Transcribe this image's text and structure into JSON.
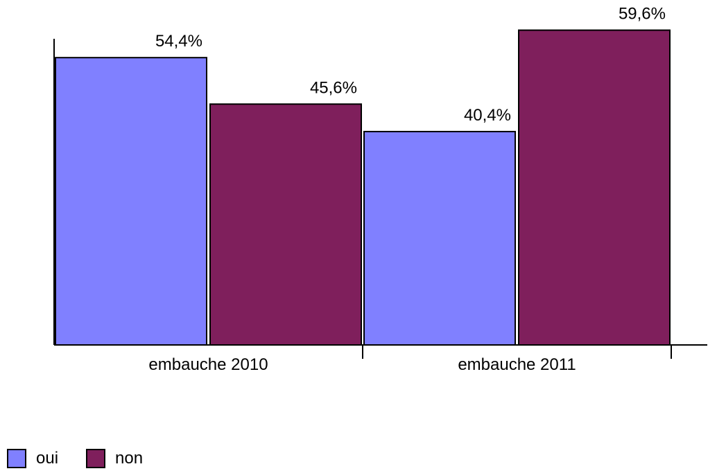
{
  "chart_data": {
    "type": "bar",
    "categories": [
      "embauche 2010",
      "embauche 2011"
    ],
    "series": [
      {
        "name": "oui",
        "values": [
          54.4,
          40.4
        ],
        "labels": [
          "54,4%",
          "40,4%"
        ],
        "color": "#8080FF"
      },
      {
        "name": "non",
        "values": [
          45.6,
          59.6
        ],
        "labels": [
          "45,6%",
          "59,6%"
        ],
        "color": "#7F1F5C"
      }
    ],
    "title": "",
    "xlabel": "",
    "ylabel": "",
    "ylim": [
      0,
      64
    ],
    "grid": false,
    "legend_position": "bottom-left"
  }
}
